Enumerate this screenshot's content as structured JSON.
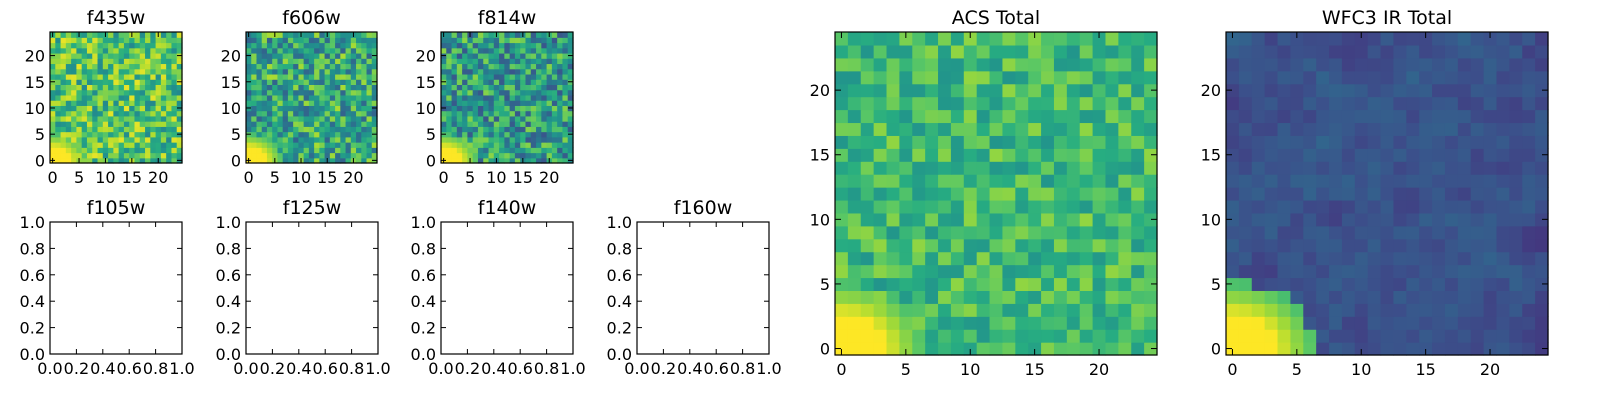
{
  "chart_data": [
    {
      "type": "heatmap",
      "title": "f435w",
      "x_ticks": [
        "0",
        "5",
        "10",
        "15",
        "20"
      ],
      "y_ticks": [
        "0",
        "5",
        "10",
        "15",
        "20"
      ],
      "xlim": [
        -0.5,
        24.5
      ],
      "ylim": [
        -0.5,
        24.5
      ],
      "grid_size": [
        25,
        25
      ],
      "colormap": "viridis",
      "pattern": "noise",
      "mean_level": 0.72,
      "spread": 0.25,
      "bright_corner": "bottom-left"
    },
    {
      "type": "heatmap",
      "title": "f606w",
      "x_ticks": [
        "0",
        "5",
        "10",
        "15",
        "20"
      ],
      "y_ticks": [
        "0",
        "5",
        "10",
        "15",
        "20"
      ],
      "xlim": [
        -0.5,
        24.5
      ],
      "ylim": [
        -0.5,
        24.5
      ],
      "grid_size": [
        25,
        25
      ],
      "colormap": "viridis",
      "pattern": "noise",
      "mean_level": 0.6,
      "spread": 0.28,
      "bright_corner": "bottom-left"
    },
    {
      "type": "heatmap",
      "title": "f814w",
      "x_ticks": [
        "0",
        "5",
        "10",
        "15",
        "20"
      ],
      "y_ticks": [
        "0",
        "5",
        "10",
        "15",
        "20"
      ],
      "xlim": [
        -0.5,
        24.5
      ],
      "ylim": [
        -0.5,
        24.5
      ],
      "grid_size": [
        25,
        25
      ],
      "colormap": "viridis",
      "pattern": "noise",
      "mean_level": 0.55,
      "spread": 0.28,
      "bright_corner": "bottom-left"
    },
    {
      "type": "empty",
      "title": "f105w",
      "x_ticks": [
        "0.0",
        "0.2",
        "0.4",
        "0.6",
        "0.8",
        "1.0"
      ],
      "y_ticks": [
        "0.0",
        "0.2",
        "0.4",
        "0.6",
        "0.8",
        "1.0"
      ],
      "xlim": [
        0,
        1
      ],
      "ylim": [
        0,
        1
      ]
    },
    {
      "type": "empty",
      "title": "f125w",
      "x_ticks": [
        "0.0",
        "0.2",
        "0.4",
        "0.6",
        "0.8",
        "1.0"
      ],
      "y_ticks": [
        "0.0",
        "0.2",
        "0.4",
        "0.6",
        "0.8",
        "1.0"
      ],
      "xlim": [
        0,
        1
      ],
      "ylim": [
        0,
        1
      ]
    },
    {
      "type": "empty",
      "title": "f140w",
      "x_ticks": [
        "0.0",
        "0.2",
        "0.4",
        "0.6",
        "0.8",
        "1.0"
      ],
      "y_ticks": [
        "0.0",
        "0.2",
        "0.4",
        "0.6",
        "0.8",
        "1.0"
      ],
      "xlim": [
        0,
        1
      ],
      "ylim": [
        0,
        1
      ]
    },
    {
      "type": "empty",
      "title": "f160w",
      "x_ticks": [
        "0.0",
        "0.2",
        "0.4",
        "0.6",
        "0.8",
        "1.0"
      ],
      "y_ticks": [
        "0.0",
        "0.2",
        "0.4",
        "0.6",
        "0.8",
        "1.0"
      ],
      "xlim": [
        0,
        1
      ],
      "ylim": [
        0,
        1
      ]
    },
    {
      "type": "heatmap",
      "title": "ACS Total",
      "x_ticks": [
        "0",
        "5",
        "10",
        "15",
        "20"
      ],
      "y_ticks": [
        "0",
        "5",
        "10",
        "15",
        "20"
      ],
      "xlim": [
        -0.5,
        24.5
      ],
      "ylim": [
        -0.5,
        24.5
      ],
      "grid_size": [
        25,
        25
      ],
      "colormap": "viridis",
      "pattern": "noise",
      "mean_level": 0.68,
      "spread": 0.16,
      "bright_corner": "bottom-left"
    },
    {
      "type": "heatmap",
      "title": "WFC3 IR Total",
      "x_ticks": [
        "0",
        "5",
        "10",
        "15",
        "20"
      ],
      "y_ticks": [
        "0",
        "5",
        "10",
        "15",
        "20"
      ],
      "xlim": [
        -0.5,
        24.5
      ],
      "ylim": [
        -0.5,
        24.5
      ],
      "grid_size": [
        25,
        25
      ],
      "colormap": "viridis",
      "pattern": "smooth-noise",
      "mean_level": 0.26,
      "spread": 0.08,
      "bright_corner": "bottom-left"
    }
  ]
}
